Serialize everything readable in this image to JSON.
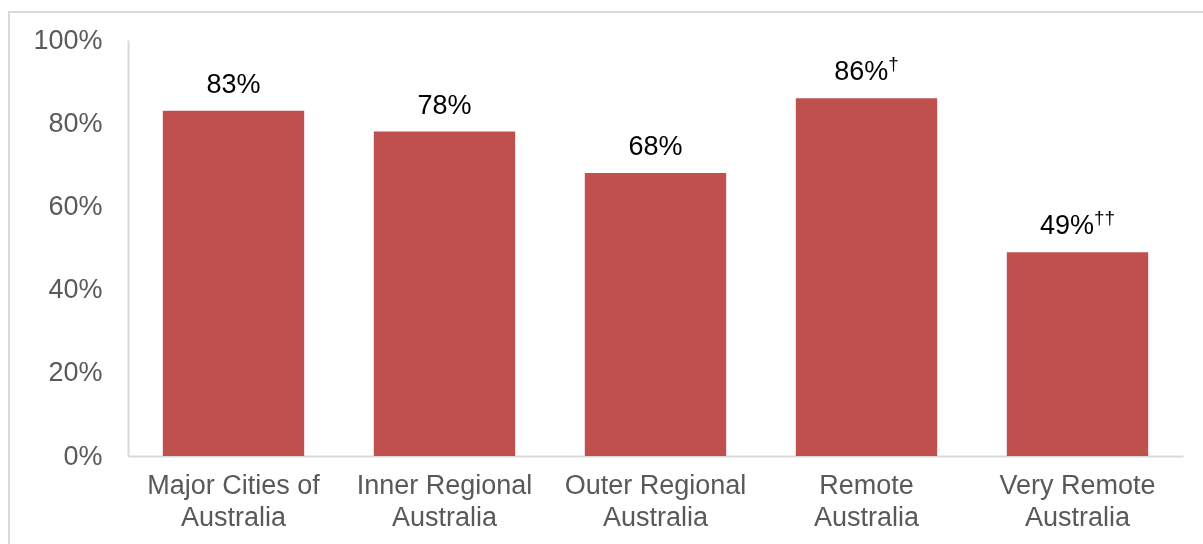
{
  "chart_data": {
    "type": "bar",
    "categories": [
      "Major Cities of Australia",
      "Inner Regional Australia",
      "Outer Regional Australia",
      "Remote Australia",
      "Very Remote Australia"
    ],
    "values": [
      83,
      78,
      68,
      86,
      49
    ],
    "color": "#c0504d",
    "value_labels": [
      "83%",
      "78%",
      "68%",
      "86%$^{†}$",
      "49%$^{††}$"
    ],
    "ylim": [
      0,
      100
    ],
    "yticks": [
      {
        "value": 0,
        "label": "0%"
      },
      {
        "value": 20,
        "label": "20%"
      },
      {
        "value": 40,
        "label": "40%"
      },
      {
        "value": 60,
        "label": "60%"
      },
      {
        "value": 80,
        "label": "80%"
      },
      {
        "value": 100,
        "label": "100%"
      }
    ]
  }
}
